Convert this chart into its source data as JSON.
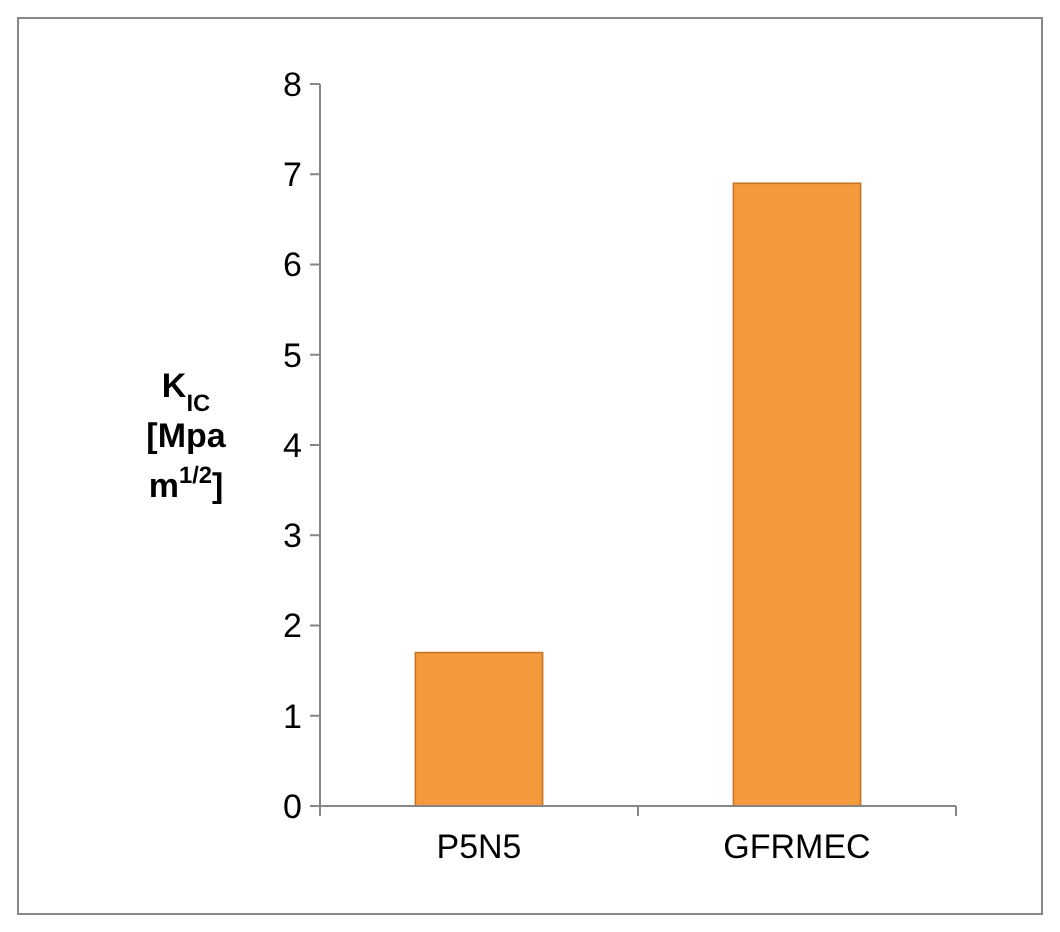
{
  "chart_data": {
    "type": "bar",
    "ylabel": "K$_{IC}$ [Mpa m$^{1/2}$]",
    "categories": [
      "P5N5",
      "GFRMEC"
    ],
    "values": [
      1.7,
      6.9
    ],
    "color": "#f59a3c",
    "ylim": [
      0,
      8
    ],
    "yticks": [
      0,
      1,
      2,
      3,
      4,
      5,
      6,
      7,
      8
    ],
    "grid": false
  }
}
